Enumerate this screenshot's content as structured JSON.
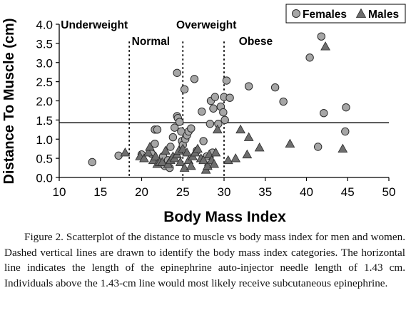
{
  "chart_data": {
    "type": "scatter",
    "xlabel": "Body Mass Index",
    "ylabel": "Distance To Muscle (cm)",
    "xlim": [
      10,
      50
    ],
    "ylim": [
      0,
      4.0
    ],
    "x_ticks": [
      "10",
      "15",
      "20",
      "25",
      "30",
      "35",
      "40",
      "45",
      "50"
    ],
    "y_ticks": [
      "0.0",
      "0.5",
      "1.0",
      "1.5",
      "2.0",
      "2.5",
      "3.0",
      "3.5",
      "4.0"
    ],
    "grid": false,
    "legend": {
      "position": "top-right",
      "entries": [
        {
          "label": "Females",
          "marker": "circle"
        },
        {
          "label": "Males",
          "marker": "triangle"
        }
      ]
    },
    "category_lines": [
      18.5,
      25,
      30
    ],
    "category_labels": [
      {
        "text": "Underweight",
        "x": 10.2,
        "y": 3.98
      },
      {
        "text": "Normal",
        "x": 18.8,
        "y": 3.55
      },
      {
        "text": "Overweight",
        "x": 24.2,
        "y": 3.98
      },
      {
        "text": "Obese",
        "x": 31.8,
        "y": 3.55
      }
    ],
    "reference_line": {
      "y": 1.43,
      "label": ""
    },
    "series": [
      {
        "name": "Females",
        "marker": "circle",
        "points": [
          [
            14.0,
            0.4
          ],
          [
            17.2,
            0.57
          ],
          [
            20.0,
            0.6
          ],
          [
            21.2,
            0.62
          ],
          [
            21.6,
            0.88
          ],
          [
            21.6,
            1.25
          ],
          [
            21.9,
            1.25
          ],
          [
            22.6,
            0.55
          ],
          [
            22.8,
            0.3
          ],
          [
            23.2,
            0.45
          ],
          [
            23.4,
            0.25
          ],
          [
            23.5,
            0.8
          ],
          [
            23.8,
            1.05
          ],
          [
            24.0,
            1.3
          ],
          [
            24.3,
            2.73
          ],
          [
            24.3,
            1.6
          ],
          [
            24.4,
            1.55
          ],
          [
            24.6,
            1.45
          ],
          [
            24.8,
            1.2
          ],
          [
            24.9,
            0.95
          ],
          [
            25.0,
            0.85
          ],
          [
            25.2,
            2.3
          ],
          [
            25.3,
            1.0
          ],
          [
            25.5,
            1.1
          ],
          [
            25.7,
            1.2
          ],
          [
            26.0,
            1.28
          ],
          [
            26.4,
            2.57
          ],
          [
            26.7,
            0.7
          ],
          [
            27.3,
            1.72
          ],
          [
            27.5,
            0.95
          ],
          [
            27.9,
            0.55
          ],
          [
            28.1,
            0.3
          ],
          [
            28.3,
            1.4
          ],
          [
            28.4,
            2.0
          ],
          [
            28.6,
            0.65
          ],
          [
            28.7,
            1.8
          ],
          [
            28.9,
            2.1
          ],
          [
            29.3,
            1.4
          ],
          [
            29.6,
            1.85
          ],
          [
            29.9,
            1.7
          ],
          [
            30.0,
            2.1
          ],
          [
            30.1,
            1.5
          ],
          [
            30.3,
            2.53
          ],
          [
            30.7,
            2.08
          ],
          [
            33.0,
            2.38
          ],
          [
            36.2,
            2.35
          ],
          [
            37.2,
            1.98
          ],
          [
            40.4,
            3.13
          ],
          [
            41.4,
            0.8
          ],
          [
            41.8,
            3.68
          ],
          [
            42.1,
            1.68
          ],
          [
            44.8,
            1.83
          ],
          [
            44.7,
            1.2
          ]
        ]
      },
      {
        "name": "Males",
        "marker": "triangle",
        "points": [
          [
            18.0,
            0.65
          ],
          [
            19.8,
            0.55
          ],
          [
            20.3,
            0.5
          ],
          [
            20.8,
            0.65
          ],
          [
            21.0,
            0.8
          ],
          [
            21.4,
            0.45
          ],
          [
            21.7,
            0.55
          ],
          [
            21.9,
            0.35
          ],
          [
            22.2,
            0.4
          ],
          [
            22.5,
            0.4
          ],
          [
            22.9,
            0.7
          ],
          [
            23.2,
            0.35
          ],
          [
            23.5,
            0.45
          ],
          [
            23.8,
            0.55
          ],
          [
            24.0,
            0.5
          ],
          [
            24.3,
            0.6
          ],
          [
            24.5,
            0.7
          ],
          [
            24.7,
            0.4
          ],
          [
            25.0,
            0.75
          ],
          [
            25.2,
            0.25
          ],
          [
            25.5,
            0.65
          ],
          [
            25.7,
            0.45
          ],
          [
            26.0,
            0.3
          ],
          [
            26.2,
            0.55
          ],
          [
            26.5,
            0.65
          ],
          [
            26.8,
            0.75
          ],
          [
            27.2,
            0.5
          ],
          [
            27.5,
            0.45
          ],
          [
            27.8,
            0.2
          ],
          [
            28.0,
            0.3
          ],
          [
            28.2,
            0.6
          ],
          [
            28.5,
            0.45
          ],
          [
            28.8,
            0.35
          ],
          [
            29.0,
            0.65
          ],
          [
            29.2,
            1.25
          ],
          [
            30.5,
            0.45
          ],
          [
            31.4,
            0.5
          ],
          [
            32.0,
            1.25
          ],
          [
            32.8,
            0.6
          ],
          [
            33.0,
            1.05
          ],
          [
            34.3,
            0.78
          ],
          [
            38.0,
            0.88
          ],
          [
            42.3,
            3.42
          ],
          [
            44.4,
            0.75
          ]
        ]
      }
    ]
  },
  "caption": "Figure 2. Scatterplot of the distance to muscle vs body mass index for men and women. Dashed vertical lines are drawn to identify the body mass index categories. The horizontal line indicates the length of the epinephrine auto-injector needle length of 1.43 cm. Individuals above the 1.43-cm line would most likely receive subcutaneous epinephrine."
}
